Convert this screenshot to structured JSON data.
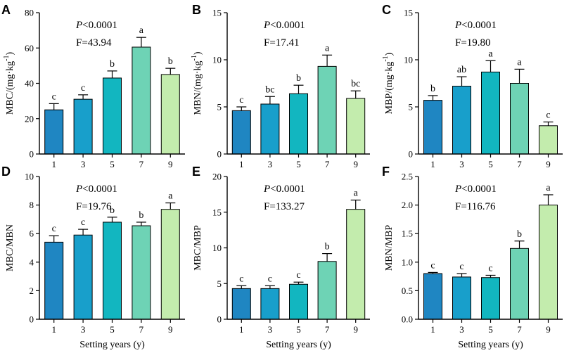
{
  "colors": [
    "#1f86c2",
    "#189fcb",
    "#12b6c0",
    "#6ed3b5",
    "#c3ecad"
  ],
  "chart_data": [
    {
      "type": "bar",
      "panel": "A",
      "categories": [
        "1",
        "3",
        "5",
        "7",
        "9"
      ],
      "values": [
        25,
        31,
        43,
        60.5,
        45
      ],
      "errors": [
        3.5,
        2.5,
        4,
        5.5,
        3.5
      ],
      "letters": [
        "c",
        "c",
        "b",
        "a",
        "b"
      ],
      "ylabel": "MBC/(mg·kg⁻¹)",
      "ylabel_main": "MBC/(mg·kg",
      "ylabel_sup": "-1",
      "ylabel_close": ")",
      "ylim": [
        0,
        80
      ],
      "yticks": [
        0,
        20,
        40,
        60,
        80
      ],
      "p_prefix": "P",
      "p_text": "<0.0001",
      "f_text": "F=43.94",
      "xlabel": ""
    },
    {
      "type": "bar",
      "panel": "B",
      "categories": [
        "1",
        "3",
        "5",
        "7",
        "9"
      ],
      "values": [
        4.6,
        5.3,
        6.4,
        9.3,
        5.9
      ],
      "errors": [
        0.4,
        0.8,
        0.9,
        1.2,
        0.8
      ],
      "letters": [
        "c",
        "bc",
        "b",
        "a",
        "bc"
      ],
      "ylabel": "MBN/(mg·kg⁻¹)",
      "ylabel_main": "MBN/(mg·kg",
      "ylabel_sup": "-1",
      "ylabel_close": ")",
      "ylim": [
        0,
        15
      ],
      "yticks": [
        0,
        5,
        10,
        15
      ],
      "p_prefix": "P",
      "p_text": "<0.0001",
      "f_text": "F=17.41",
      "xlabel": ""
    },
    {
      "type": "bar",
      "panel": "C",
      "categories": [
        "1",
        "3",
        "5",
        "7",
        "9"
      ],
      "values": [
        5.7,
        7.2,
        8.7,
        7.5,
        3.0
      ],
      "errors": [
        0.5,
        1.0,
        1.2,
        1.5,
        0.4
      ],
      "letters": [
        "b",
        "ab",
        "a",
        "a",
        "c"
      ],
      "ylabel": "MBP/(mg·kg⁻¹)",
      "ylabel_main": "MBP/(mg·kg",
      "ylabel_sup": "-1",
      "ylabel_close": ")",
      "ylim": [
        0,
        15
      ],
      "yticks": [
        0,
        5,
        10,
        15
      ],
      "p_prefix": "P",
      "p_text": "<0.0001",
      "f_text": "F=19.80",
      "xlabel": ""
    },
    {
      "type": "bar",
      "panel": "D",
      "categories": [
        "1",
        "3",
        "5",
        "7",
        "9"
      ],
      "values": [
        5.4,
        5.9,
        6.8,
        6.55,
        7.7
      ],
      "errors": [
        0.45,
        0.4,
        0.35,
        0.25,
        0.45
      ],
      "letters": [
        "c",
        "c",
        "b",
        "b",
        "a"
      ],
      "ylabel": "MBC/MBN",
      "ylabel_main": "MBC/MBN",
      "ylabel_sup": "",
      "ylabel_close": "",
      "ylim": [
        0,
        10
      ],
      "yticks": [
        0,
        2,
        4,
        6,
        8,
        10
      ],
      "p_prefix": "P",
      "p_text": "<0.0001",
      "f_text": "F=19.76",
      "xlabel": "Setting years (y)"
    },
    {
      "type": "bar",
      "panel": "E",
      "categories": [
        "1",
        "3",
        "5",
        "7",
        "9"
      ],
      "values": [
        4.3,
        4.3,
        4.9,
        8.1,
        15.4
      ],
      "errors": [
        0.4,
        0.4,
        0.3,
        1.1,
        1.3
      ],
      "letters": [
        "c",
        "c",
        "c",
        "b",
        "a"
      ],
      "ylabel": "MBC/MBP",
      "ylabel_main": "MBC/MBP",
      "ylabel_sup": "",
      "ylabel_close": "",
      "ylim": [
        0,
        20
      ],
      "yticks": [
        0,
        5,
        10,
        15,
        20
      ],
      "p_prefix": "P",
      "p_text": "<0.0001",
      "f_text": "F=133.27",
      "xlabel": "Setting years (y)"
    },
    {
      "type": "bar",
      "panel": "F",
      "categories": [
        "1",
        "3",
        "5",
        "7",
        "9"
      ],
      "values": [
        0.8,
        0.74,
        0.73,
        1.24,
        2.0
      ],
      "errors": [
        0.02,
        0.06,
        0.04,
        0.13,
        0.18
      ],
      "letters": [
        "c",
        "c",
        "c",
        "b",
        "a"
      ],
      "ylabel": "MBN/MBP",
      "ylabel_main": "MBN/MBP",
      "ylabel_sup": "",
      "ylabel_close": "",
      "ylim": [
        0,
        2.5
      ],
      "yticks": [
        0,
        0.5,
        1.0,
        1.5,
        2.0,
        2.5
      ],
      "ytick_labels": [
        "0.0",
        "0.5",
        "1.0",
        "1.5",
        "2.0",
        "2.5"
      ],
      "p_prefix": "P",
      "p_text": "<0.0001",
      "f_text": "F=116.76",
      "xlabel": "Setting years (y)"
    }
  ]
}
